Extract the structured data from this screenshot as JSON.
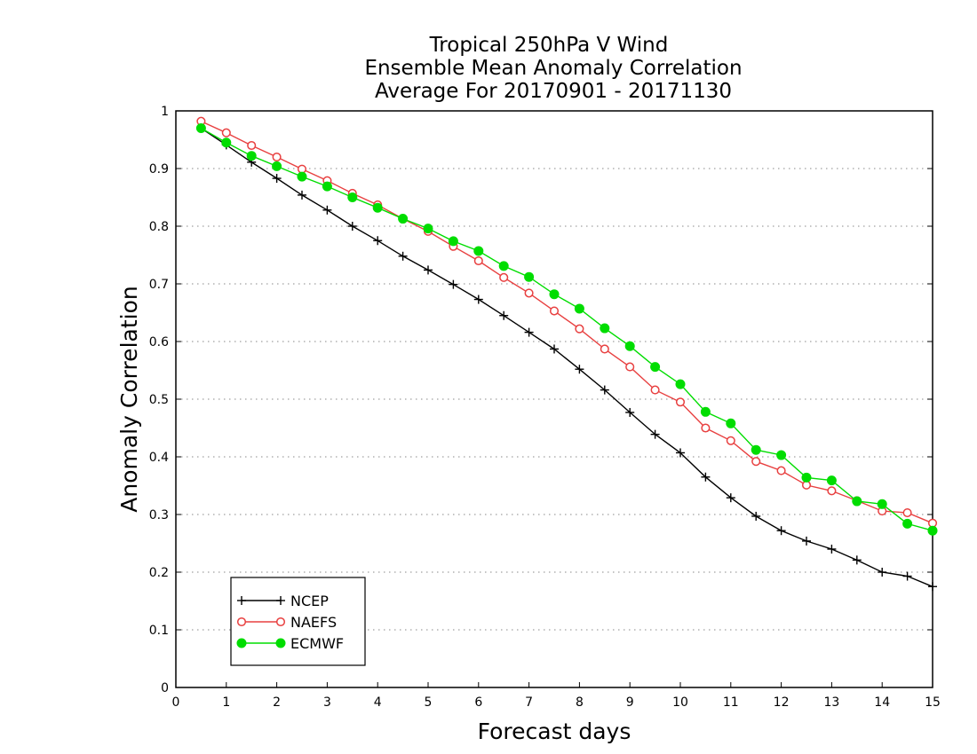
{
  "chart_data": {
    "type": "line",
    "title": [
      "Tropical 250hPa V Wind",
      "Ensemble Mean Anomaly Correlation",
      "Average For 20170901 - 20171130"
    ],
    "xlabel": "Forecast days",
    "ylabel": "Anomaly Correlation",
    "xlim": [
      0,
      15
    ],
    "ylim": [
      0,
      1
    ],
    "xticks": [
      "0",
      "1",
      "2",
      "3",
      "4",
      "5",
      "6",
      "7",
      "8",
      "9",
      "10",
      "11",
      "12",
      "13",
      "14",
      "15"
    ],
    "yticks": [
      "0",
      "0.1",
      "0.2",
      "0.3",
      "0.4",
      "0.5",
      "0.6",
      "0.7",
      "0.8",
      "0.9",
      "1"
    ],
    "grid": true,
    "legend_position": "bottom-left",
    "x": [
      0.5,
      1,
      1.5,
      2,
      2.5,
      3,
      3.5,
      4,
      4.5,
      5,
      5.5,
      6,
      6.5,
      7,
      7.5,
      8,
      8.5,
      9,
      9.5,
      10,
      10.5,
      11,
      11.5,
      12,
      12.5,
      13,
      13.5,
      14,
      14.5,
      15
    ],
    "series": [
      {
        "name": "NCEP",
        "color": "#000000",
        "marker": "plus",
        "values": [
          0.97,
          0.941,
          0.911,
          0.883,
          0.854,
          0.828,
          0.8,
          0.775,
          0.748,
          0.724,
          0.699,
          0.673,
          0.645,
          0.616,
          0.587,
          0.552,
          0.516,
          0.477,
          0.439,
          0.407,
          0.365,
          0.329,
          0.297,
          0.272,
          0.254,
          0.24,
          0.221,
          0.2,
          0.193,
          0.175
        ]
      },
      {
        "name": "NAEFS",
        "color": "#e84040",
        "marker": "open-circle",
        "values": [
          0.982,
          0.962,
          0.94,
          0.92,
          0.899,
          0.879,
          0.857,
          0.837,
          0.813,
          0.791,
          0.765,
          0.74,
          0.711,
          0.684,
          0.653,
          0.622,
          0.587,
          0.556,
          0.516,
          0.495,
          0.45,
          0.428,
          0.392,
          0.376,
          0.351,
          0.341,
          0.324,
          0.306,
          0.303,
          0.285
        ]
      },
      {
        "name": "ECMWF",
        "color": "#00dd00",
        "marker": "filled-circle",
        "values": [
          0.97,
          0.945,
          0.922,
          0.904,
          0.886,
          0.869,
          0.85,
          0.832,
          0.813,
          0.796,
          0.774,
          0.757,
          0.731,
          0.712,
          0.682,
          0.657,
          0.623,
          0.592,
          0.556,
          0.526,
          0.478,
          0.458,
          0.412,
          0.403,
          0.364,
          0.359,
          0.323,
          0.318,
          0.284,
          0.272
        ]
      }
    ]
  }
}
